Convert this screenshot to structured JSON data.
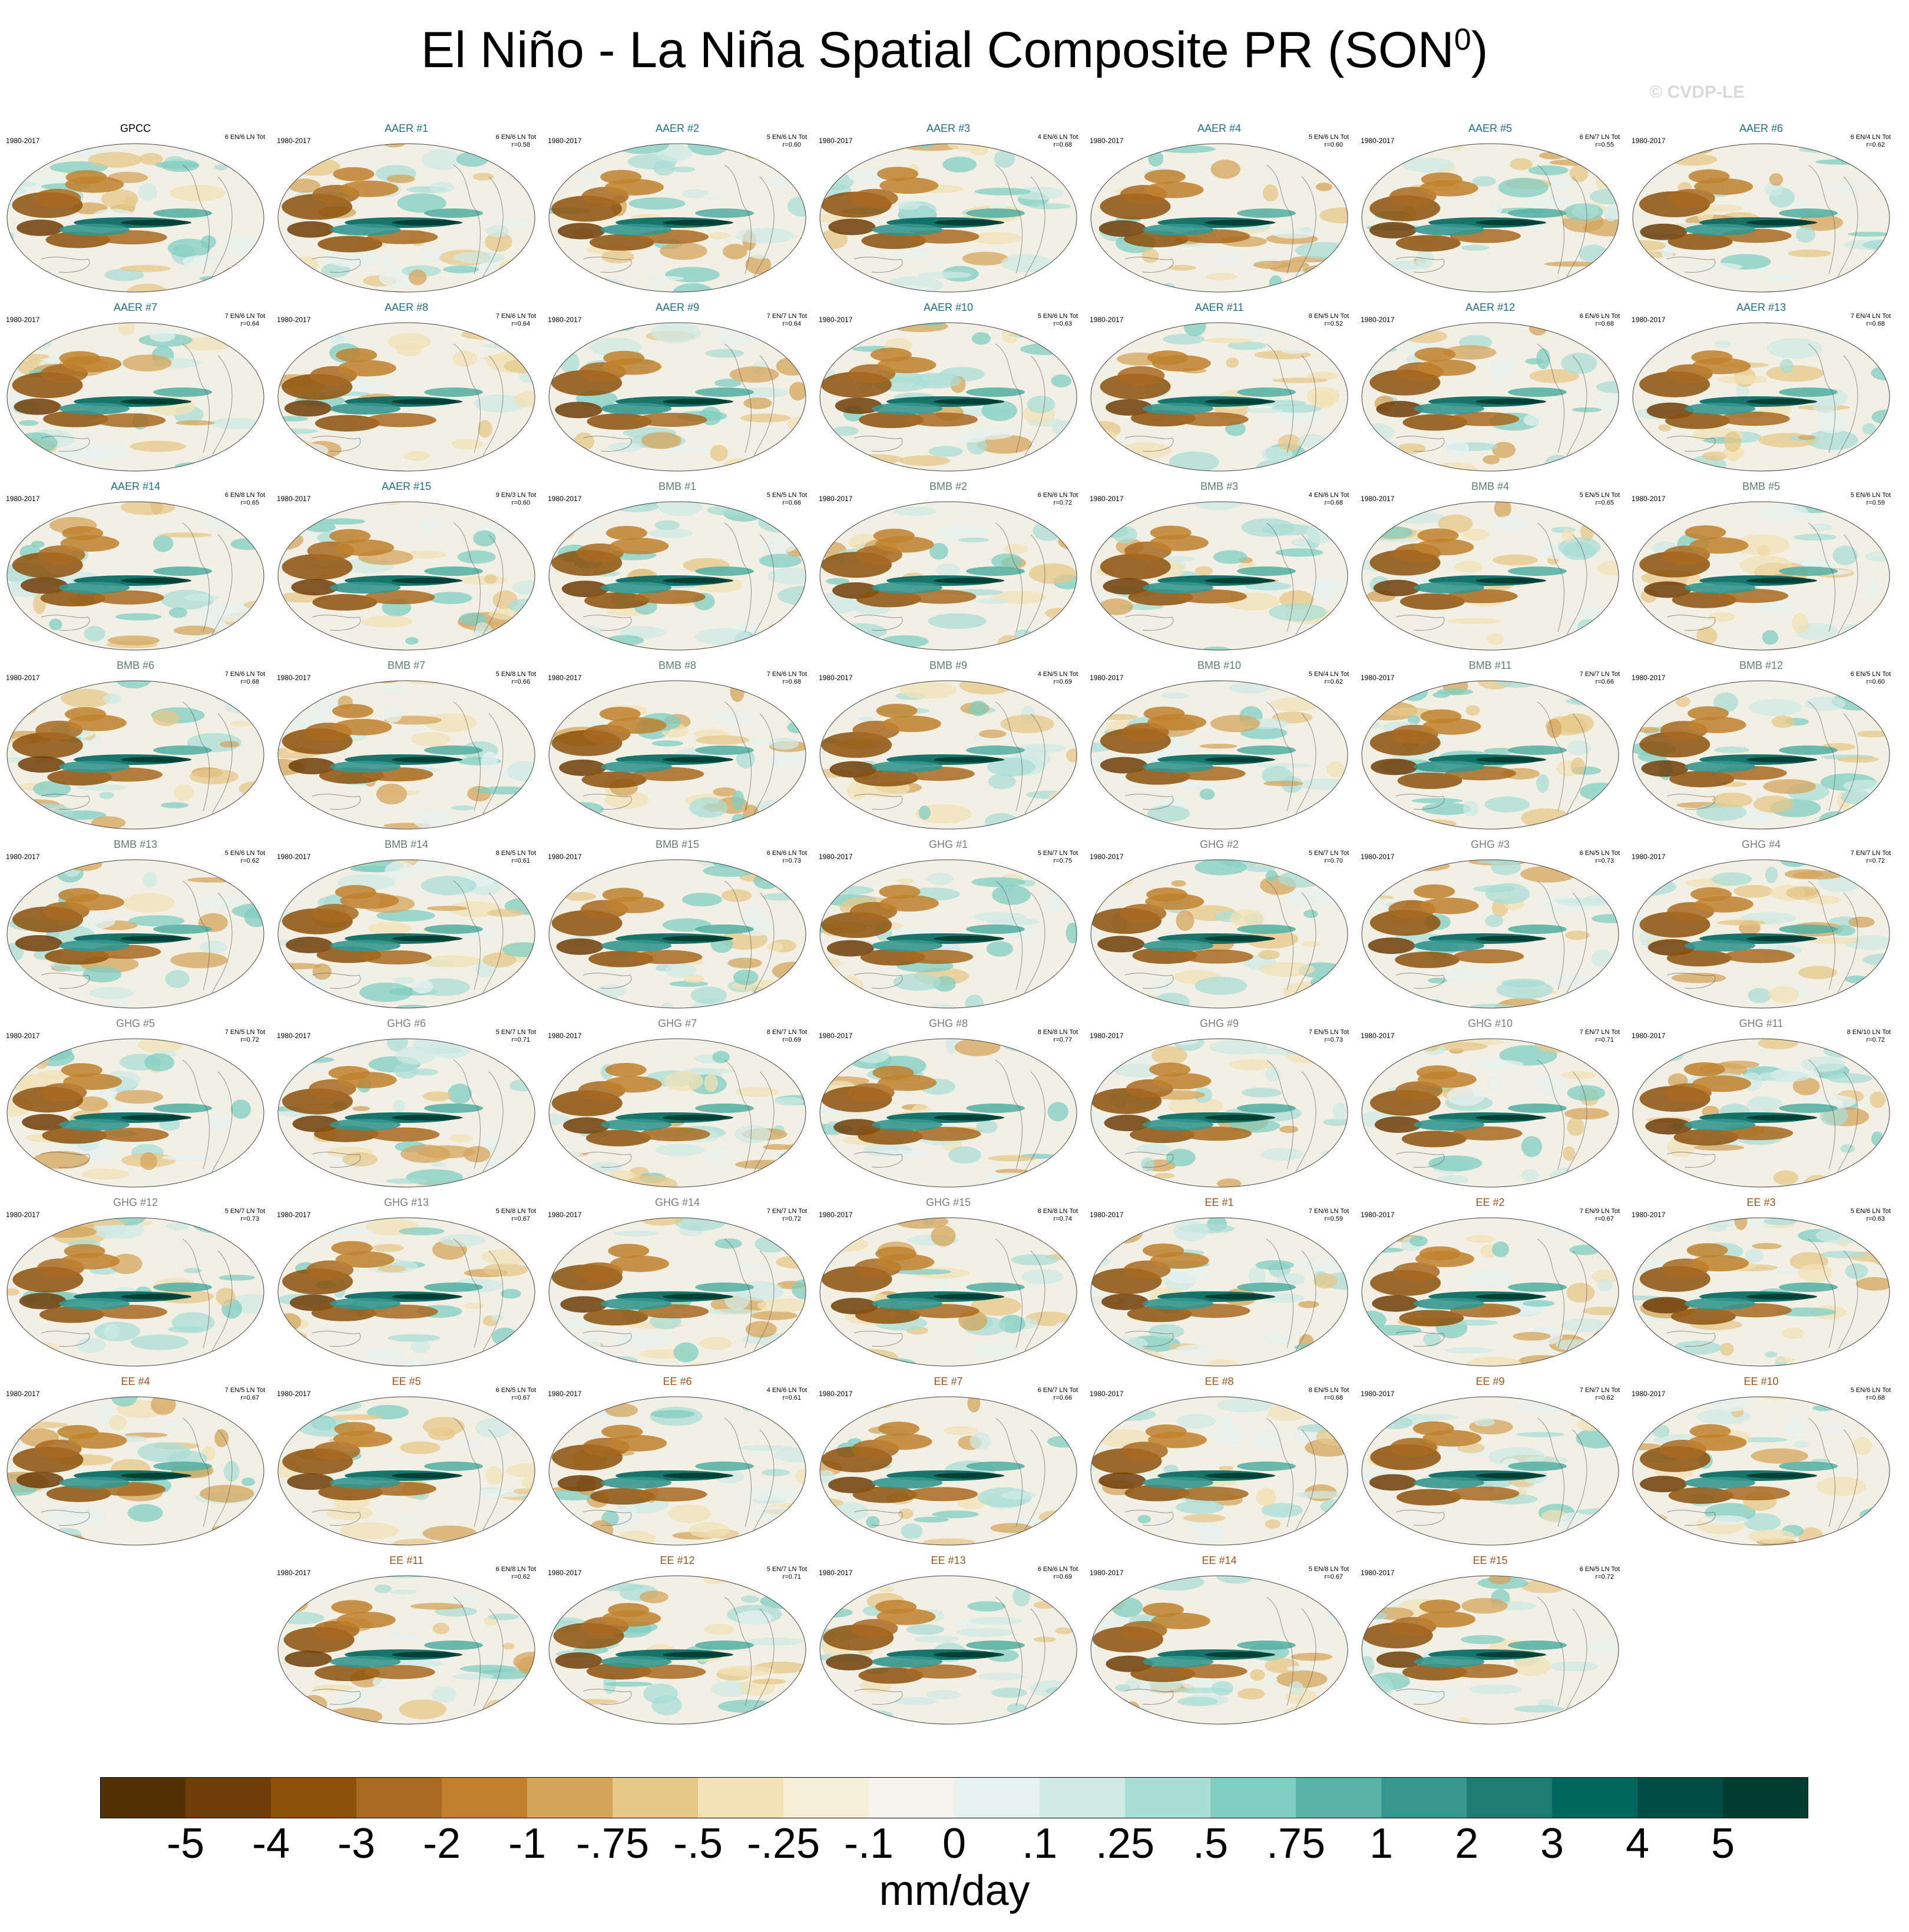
{
  "title": "El Niño - La Niña Spatial Composite PR (SON",
  "title_superscript": "0",
  "title_suffix": ")",
  "credit": "© CVDP-LE",
  "colors": {
    "AAER": "#1f6e87",
    "BMB": "#5e7e73",
    "GHG": "#7c7c7c",
    "EE": "#a0521b",
    "OBS": "#000000"
  },
  "panels": [
    {
      "title": "GPCC",
      "group": "OBS",
      "period": "1980-2017",
      "counts": "6 EN/6 LN Tot",
      "corr": ""
    },
    {
      "title": "AAER #1",
      "group": "AAER",
      "period": "1980-2017",
      "counts": "6 EN/6 LN Tot",
      "corr": "r=0.58"
    },
    {
      "title": "AAER #2",
      "group": "AAER",
      "period": "1980-2017",
      "counts": "5 EN/6 LN Tot",
      "corr": "r=0.60"
    },
    {
      "title": "AAER #3",
      "group": "AAER",
      "period": "1980-2017",
      "counts": "4 EN/6 LN Tot",
      "corr": "r=0.68"
    },
    {
      "title": "AAER #4",
      "group": "AAER",
      "period": "1980-2017",
      "counts": "5 EN/6 LN Tot",
      "corr": "r=0.60"
    },
    {
      "title": "AAER #5",
      "group": "AAER",
      "period": "1980-2017",
      "counts": "6 EN/7 LN Tot",
      "corr": "r=0.55"
    },
    {
      "title": "AAER #6",
      "group": "AAER",
      "period": "1980-2017",
      "counts": "6 EN/4 LN Tot",
      "corr": "r=0.62"
    },
    {
      "title": "AAER #7",
      "group": "AAER",
      "period": "1980-2017",
      "counts": "7 EN/6 LN Tot",
      "corr": "r=0.64"
    },
    {
      "title": "AAER #8",
      "group": "AAER",
      "period": "1980-2017",
      "counts": "7 EN/6 LN Tot",
      "corr": "r=0.64"
    },
    {
      "title": "AAER #9",
      "group": "AAER",
      "period": "1980-2017",
      "counts": "7 EN/7 LN Tot",
      "corr": "r=0.64"
    },
    {
      "title": "AAER #10",
      "group": "AAER",
      "period": "1980-2017",
      "counts": "5 EN/6 LN Tot",
      "corr": "r=0.63"
    },
    {
      "title": "AAER #11",
      "group": "AAER",
      "period": "1980-2017",
      "counts": "8 EN/5 LN Tot",
      "corr": "r=0.52"
    },
    {
      "title": "AAER #12",
      "group": "AAER",
      "period": "1980-2017",
      "counts": "6 EN/6 LN Tot",
      "corr": "r=0.68"
    },
    {
      "title": "AAER #13",
      "group": "AAER",
      "period": "1980-2017",
      "counts": "7 EN/4 LN Tot",
      "corr": "r=0.68"
    },
    {
      "title": "AAER #14",
      "group": "AAER",
      "period": "1980-2017",
      "counts": "6 EN/8 LN Tot",
      "corr": "r=0.65"
    },
    {
      "title": "AAER #15",
      "group": "AAER",
      "period": "1980-2017",
      "counts": "9 EN/3 LN Tot",
      "corr": "r=0.60"
    },
    {
      "title": "BMB #1",
      "group": "BMB",
      "period": "1980-2017",
      "counts": "5 EN/5 LN Tot",
      "corr": "r=0.66"
    },
    {
      "title": "BMB #2",
      "group": "BMB",
      "period": "1980-2017",
      "counts": "6 EN/6 LN Tot",
      "corr": "r=0.72"
    },
    {
      "title": "BMB #3",
      "group": "BMB",
      "period": "1980-2017",
      "counts": "4 EN/6 LN Tot",
      "corr": "r=0.68"
    },
    {
      "title": "BMB #4",
      "group": "BMB",
      "period": "1980-2017",
      "counts": "5 EN/5 LN Tot",
      "corr": "r=0.65"
    },
    {
      "title": "BMB #5",
      "group": "BMB",
      "period": "1980-2017",
      "counts": "5 EN/6 LN Tot",
      "corr": "r=0.59"
    },
    {
      "title": "BMB #6",
      "group": "BMB",
      "period": "1980-2017",
      "counts": "7 EN/6 LN Tot",
      "corr": "r=0.68"
    },
    {
      "title": "BMB #7",
      "group": "BMB",
      "period": "1980-2017",
      "counts": "5 EN/8 LN Tot",
      "corr": "r=0.66"
    },
    {
      "title": "BMB #8",
      "group": "BMB",
      "period": "1980-2017",
      "counts": "7 EN/6 LN Tot",
      "corr": "r=0.68"
    },
    {
      "title": "BMB #9",
      "group": "BMB",
      "period": "1980-2017",
      "counts": "4 EN/5 LN Tot",
      "corr": "r=0.69"
    },
    {
      "title": "BMB #10",
      "group": "BMB",
      "period": "1980-2017",
      "counts": "5 EN/4 LN Tot",
      "corr": "r=0.62"
    },
    {
      "title": "BMB #11",
      "group": "BMB",
      "period": "1980-2017",
      "counts": "7 EN/7 LN Tot",
      "corr": "r=0.66"
    },
    {
      "title": "BMB #12",
      "group": "BMB",
      "period": "1980-2017",
      "counts": "6 EN/5 LN Tot",
      "corr": "r=0.60"
    },
    {
      "title": "BMB #13",
      "group": "BMB",
      "period": "1980-2017",
      "counts": "5 EN/6 LN Tot",
      "corr": "r=0.62"
    },
    {
      "title": "BMB #14",
      "group": "BMB",
      "period": "1980-2017",
      "counts": "8 EN/5 LN Tot",
      "corr": "r=0.61"
    },
    {
      "title": "BMB #15",
      "group": "BMB",
      "period": "1980-2017",
      "counts": "6 EN/6 LN Tot",
      "corr": "r=0.73"
    },
    {
      "title": "GHG #1",
      "group": "GHG",
      "period": "1980-2017",
      "counts": "5 EN/7 LN Tot",
      "corr": "r=0.75"
    },
    {
      "title": "GHG #2",
      "group": "GHG",
      "period": "1980-2017",
      "counts": "5 EN/7 LN Tot",
      "corr": "r=0.70"
    },
    {
      "title": "GHG #3",
      "group": "GHG",
      "period": "1980-2017",
      "counts": "6 EN/5 LN Tot",
      "corr": "r=0.73"
    },
    {
      "title": "GHG #4",
      "group": "GHG",
      "period": "1980-2017",
      "counts": "7 EN/7 LN Tot",
      "corr": "r=0.72"
    },
    {
      "title": "GHG #5",
      "group": "GHG",
      "period": "1980-2017",
      "counts": "7 EN/5 LN Tot",
      "corr": "r=0.72"
    },
    {
      "title": "GHG #6",
      "group": "GHG",
      "period": "1980-2017",
      "counts": "5 EN/7 LN Tot",
      "corr": "r=0.71"
    },
    {
      "title": "GHG #7",
      "group": "GHG",
      "period": "1980-2017",
      "counts": "8 EN/7 LN Tot",
      "corr": "r=0.69"
    },
    {
      "title": "GHG #8",
      "group": "GHG",
      "period": "1980-2017",
      "counts": "8 EN/8 LN Tot",
      "corr": "r=0.77"
    },
    {
      "title": "GHG #9",
      "group": "GHG",
      "period": "1980-2017",
      "counts": "7 EN/5 LN Tot",
      "corr": "r=0.73"
    },
    {
      "title": "GHG #10",
      "group": "GHG",
      "period": "1980-2017",
      "counts": "7 EN/7 LN Tot",
      "corr": "r=0.71"
    },
    {
      "title": "GHG #11",
      "group": "GHG",
      "period": "1980-2017",
      "counts": "8 EN/10 LN Tot",
      "corr": "r=0.72"
    },
    {
      "title": "GHG #12",
      "group": "GHG",
      "period": "1980-2017",
      "counts": "5 EN/7 LN Tot",
      "corr": "r=0.73"
    },
    {
      "title": "GHG #13",
      "group": "GHG",
      "period": "1980-2017",
      "counts": "5 EN/8 LN Tot",
      "corr": "r=0.67"
    },
    {
      "title": "GHG #14",
      "group": "GHG",
      "period": "1980-2017",
      "counts": "7 EN/7 LN Tot",
      "corr": "r=0.72"
    },
    {
      "title": "GHG #15",
      "group": "GHG",
      "period": "1980-2017",
      "counts": "8 EN/8 LN Tot",
      "corr": "r=0.74"
    },
    {
      "title": "EE #1",
      "group": "EE",
      "period": "1980-2017",
      "counts": "7 EN/6 LN Tot",
      "corr": "r=0.59"
    },
    {
      "title": "EE #2",
      "group": "EE",
      "period": "1980-2017",
      "counts": "7 EN/9 LN Tot",
      "corr": "r=0.67"
    },
    {
      "title": "EE #3",
      "group": "EE",
      "period": "1980-2017",
      "counts": "5 EN/6 LN Tot",
      "corr": "r=0.63"
    },
    {
      "title": "EE #4",
      "group": "EE",
      "period": "1980-2017",
      "counts": "7 EN/5 LN Tot",
      "corr": "r=0.67"
    },
    {
      "title": "EE #5",
      "group": "EE",
      "period": "1980-2017",
      "counts": "6 EN/5 LN Tot",
      "corr": "r=0.67"
    },
    {
      "title": "EE #6",
      "group": "EE",
      "period": "1980-2017",
      "counts": "4 EN/6 LN Tot",
      "corr": "r=0.61"
    },
    {
      "title": "EE #7",
      "group": "EE",
      "period": "1980-2017",
      "counts": "6 EN/7 LN Tot",
      "corr": "r=0.66"
    },
    {
      "title": "EE #8",
      "group": "EE",
      "period": "1980-2017",
      "counts": "8 EN/5 LN Tot",
      "corr": "r=0.68"
    },
    {
      "title": "EE #9",
      "group": "EE",
      "period": "1980-2017",
      "counts": "7 EN/7 LN Tot",
      "corr": "r=0.62"
    },
    {
      "title": "EE #10",
      "group": "EE",
      "period": "1980-2017",
      "counts": "5 EN/6 LN Tot",
      "corr": "r=0.68"
    },
    {
      "title": "EE #11",
      "group": "EE",
      "period": "1980-2017",
      "counts": "6 EN/8 LN Tot",
      "corr": "r=0.62"
    },
    {
      "title": "EE #12",
      "group": "EE",
      "period": "1980-2017",
      "counts": "5 EN/7 LN Tot",
      "corr": "r=0.71"
    },
    {
      "title": "EE #13",
      "group": "EE",
      "period": "1980-2017",
      "counts": "6 EN/6 LN Tot",
      "corr": "r=0.69"
    },
    {
      "title": "EE #14",
      "group": "EE",
      "period": "1980-2017",
      "counts": "5 EN/8 LN Tot",
      "corr": "r=0.67"
    },
    {
      "title": "EE #15",
      "group": "EE",
      "period": "1980-2017",
      "counts": "6 EN/5 LN Tot",
      "corr": "r=0.72"
    }
  ],
  "chart_data": {
    "type": "heatmap",
    "title": "El Niño - La Niña Spatial Composite PR (SON0)",
    "colorbar": {
      "units": "mm/day",
      "tick_labels": [
        "-5",
        "-4",
        "-3",
        "-2",
        "-1",
        "-.75",
        "-.5",
        "-.25",
        "-.1",
        "0",
        ".1",
        ".25",
        ".5",
        ".75",
        "1",
        "2",
        "3",
        "4",
        "5"
      ],
      "colors": [
        "#543005",
        "#703d08",
        "#8c510a",
        "#a86a20",
        "#bf812d",
        "#d4a65c",
        "#e5c889",
        "#f2e2b6",
        "#f6efd8",
        "#f5f3ee",
        "#e6f2f0",
        "#cfeae4",
        "#a9ded5",
        "#80cdc1",
        "#5ab1a5",
        "#35978f",
        "#1d7d73",
        "#01665e",
        "#014d43",
        "#003c30"
      ]
    },
    "map_projection": "Robinson-like global",
    "map_pattern": "positive (green) anomaly along equatorial central/eastern Pacific; negative (brown) anomalies over Maritime Continent / western Pacific and subtropics"
  }
}
